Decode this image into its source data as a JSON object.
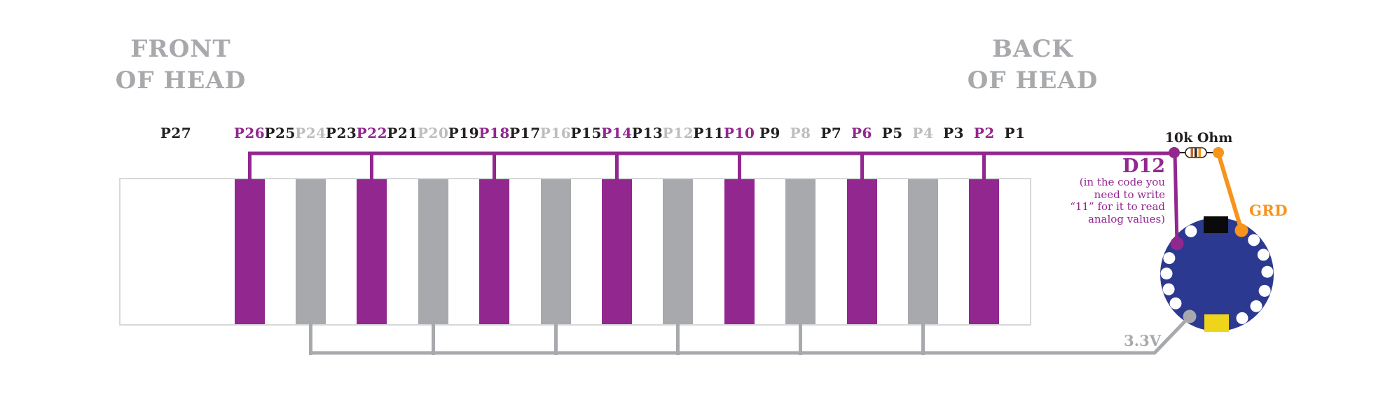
{
  "header": {
    "front_of_head": [
      "FRONT",
      "OF HEAD"
    ],
    "back_of_head": [
      "BACK",
      "OF HEAD"
    ]
  },
  "pins": [
    {
      "label": "P27",
      "role": "signal"
    },
    {
      "label": "P26",
      "role": "active"
    },
    {
      "label": "P25",
      "role": "signal"
    },
    {
      "label": "P24",
      "role": "ground"
    },
    {
      "label": "P23",
      "role": "signal"
    },
    {
      "label": "P22",
      "role": "active"
    },
    {
      "label": "P21",
      "role": "signal"
    },
    {
      "label": "P20",
      "role": "ground"
    },
    {
      "label": "P19",
      "role": "signal"
    },
    {
      "label": "P18",
      "role": "active"
    },
    {
      "label": "P17",
      "role": "signal"
    },
    {
      "label": "P16",
      "role": "ground"
    },
    {
      "label": "P15",
      "role": "signal"
    },
    {
      "label": "P14",
      "role": "active"
    },
    {
      "label": "P13",
      "role": "signal"
    },
    {
      "label": "P12",
      "role": "ground"
    },
    {
      "label": "P11",
      "role": "signal"
    },
    {
      "label": "P10",
      "role": "active"
    },
    {
      "label": "P9",
      "role": "signal"
    },
    {
      "label": "P8",
      "role": "ground"
    },
    {
      "label": "P7",
      "role": "signal"
    },
    {
      "label": "P6",
      "role": "active"
    },
    {
      "label": "P5",
      "role": "signal"
    },
    {
      "label": "P4",
      "role": "ground"
    },
    {
      "label": "P3",
      "role": "signal"
    },
    {
      "label": "P2",
      "role": "active"
    },
    {
      "label": "P1",
      "role": "signal"
    }
  ],
  "annotations": {
    "resistor_label": "10k Ohm",
    "d12_label": "D12",
    "d12_note_lines": [
      "(in the code you",
      "need to write",
      "“11” for it to read",
      "analog values)"
    ],
    "grd_label": "GRD",
    "v33_label": "3.3V"
  },
  "board": {
    "white_pad_count": 11,
    "connectors": [
      "D12",
      "GRD",
      "3.3V"
    ]
  },
  "colors": {
    "purple": "#92278F",
    "bar_gray": "#A7A9AC",
    "label_gray": "#BCBEC0",
    "orange": "#F7941D",
    "board_blue": "#2B3990",
    "battery_yellow": "#EFD41C",
    "text_black": "#231F20",
    "band_border": "#D6D8D9"
  }
}
